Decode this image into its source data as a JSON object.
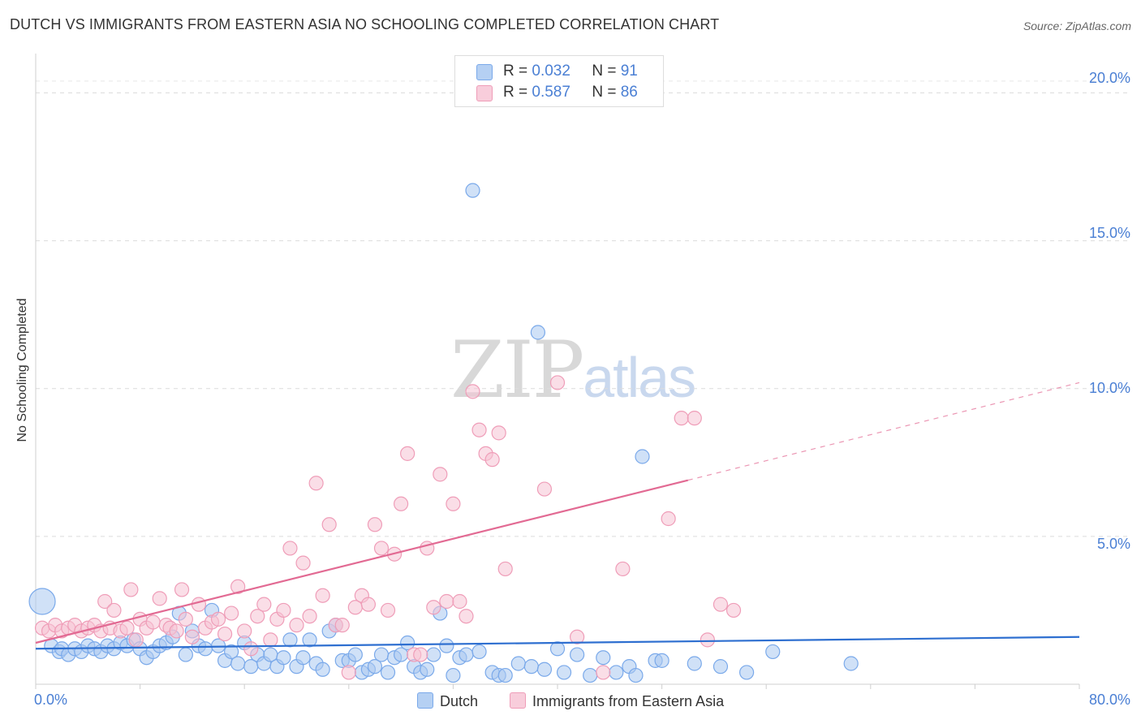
{
  "chart_data": {
    "type": "scatter",
    "title": "DUTCH VS IMMIGRANTS FROM EASTERN ASIA NO SCHOOLING COMPLETED CORRELATION CHART",
    "source": "Source: ZipAtlas.com",
    "xlabel": "",
    "ylabel": "No Schooling Completed",
    "xlim": [
      0,
      80
    ],
    "ylim": [
      0,
      21
    ],
    "x_tick_labels": [
      "0.0%",
      "80.0%"
    ],
    "y_ticks": [
      5,
      10,
      15,
      20
    ],
    "y_tick_labels": [
      "5.0%",
      "10.0%",
      "15.0%",
      "20.0%"
    ],
    "watermark": {
      "zip": "ZIP",
      "atlas": "atlas"
    },
    "legend_stats": [
      {
        "r_label": "R =",
        "r_value": "0.032",
        "n_label": "N =",
        "n_value": "91"
      },
      {
        "r_label": "R =",
        "r_value": "0.587",
        "n_label": "N =",
        "n_value": "86"
      }
    ],
    "series": [
      {
        "name": "Dutch",
        "color": "#7aa9ea",
        "fill": "#a9c8f0",
        "trend_color": "#2e6fd0",
        "trend": {
          "x0": 0,
          "y0": 1.2,
          "x1": 80,
          "y1": 1.6,
          "solid_to": 80
        },
        "points": [
          [
            0.5,
            2.8
          ],
          [
            1.2,
            1.3
          ],
          [
            1.8,
            1.1
          ],
          [
            2.0,
            1.2
          ],
          [
            2.5,
            1.0
          ],
          [
            3.0,
            1.2
          ],
          [
            3.5,
            1.1
          ],
          [
            4.0,
            1.3
          ],
          [
            4.5,
            1.2
          ],
          [
            5.0,
            1.1
          ],
          [
            5.5,
            1.3
          ],
          [
            6.0,
            1.2
          ],
          [
            6.5,
            1.4
          ],
          [
            7.0,
            1.3
          ],
          [
            7.5,
            1.5
          ],
          [
            8.0,
            1.2
          ],
          [
            8.5,
            0.9
          ],
          [
            9.0,
            1.1
          ],
          [
            9.5,
            1.3
          ],
          [
            10.0,
            1.4
          ],
          [
            10.5,
            1.6
          ],
          [
            11.0,
            2.4
          ],
          [
            11.5,
            1.0
          ],
          [
            12.0,
            1.8
          ],
          [
            12.5,
            1.3
          ],
          [
            13.0,
            1.2
          ],
          [
            13.5,
            2.5
          ],
          [
            14.0,
            1.3
          ],
          [
            14.5,
            0.8
          ],
          [
            15.0,
            1.1
          ],
          [
            15.5,
            0.7
          ],
          [
            16.0,
            1.4
          ],
          [
            16.5,
            0.6
          ],
          [
            17.0,
            1.0
          ],
          [
            17.5,
            0.7
          ],
          [
            18.0,
            1.0
          ],
          [
            18.5,
            0.6
          ],
          [
            19.0,
            0.9
          ],
          [
            19.5,
            1.5
          ],
          [
            20.0,
            0.6
          ],
          [
            20.5,
            0.9
          ],
          [
            21.0,
            1.5
          ],
          [
            21.5,
            0.7
          ],
          [
            22.0,
            0.5
          ],
          [
            22.5,
            1.8
          ],
          [
            23.0,
            2.0
          ],
          [
            23.5,
            0.8
          ],
          [
            24.0,
            0.8
          ],
          [
            24.5,
            1.0
          ],
          [
            25.0,
            0.4
          ],
          [
            25.5,
            0.5
          ],
          [
            26.0,
            0.6
          ],
          [
            26.5,
            1.0
          ],
          [
            27.0,
            0.4
          ],
          [
            27.5,
            0.9
          ],
          [
            28.0,
            1.0
          ],
          [
            28.5,
            1.4
          ],
          [
            29.0,
            0.6
          ],
          [
            29.5,
            0.4
          ],
          [
            30.0,
            0.5
          ],
          [
            30.5,
            1.0
          ],
          [
            31.0,
            2.4
          ],
          [
            31.5,
            1.3
          ],
          [
            32.0,
            0.3
          ],
          [
            32.5,
            0.9
          ],
          [
            33.0,
            1.0
          ],
          [
            33.5,
            16.7
          ],
          [
            34.0,
            1.1
          ],
          [
            35.0,
            0.4
          ],
          [
            35.5,
            0.3
          ],
          [
            36.0,
            0.3
          ],
          [
            37.0,
            0.7
          ],
          [
            38.0,
            0.6
          ],
          [
            38.5,
            11.9
          ],
          [
            39.0,
            0.5
          ],
          [
            40.0,
            1.2
          ],
          [
            40.5,
            0.4
          ],
          [
            41.5,
            1.0
          ],
          [
            42.5,
            0.3
          ],
          [
            43.5,
            0.9
          ],
          [
            44.5,
            0.4
          ],
          [
            45.5,
            0.6
          ],
          [
            46.0,
            0.3
          ],
          [
            46.5,
            7.7
          ],
          [
            47.5,
            0.8
          ],
          [
            48.0,
            0.8
          ],
          [
            50.5,
            0.7
          ],
          [
            52.5,
            0.6
          ],
          [
            54.5,
            0.4
          ],
          [
            56.5,
            1.1
          ],
          [
            62.5,
            0.7
          ]
        ]
      },
      {
        "name": "Immigrants from Eastern Asia",
        "color": "#ef9db8",
        "fill": "#f6c3d3",
        "trend_color": "#e26a93",
        "trend": {
          "x0": 0,
          "y0": 1.4,
          "x1": 80,
          "y1": 10.2,
          "solid_to": 50
        },
        "points": [
          [
            0.5,
            1.9
          ],
          [
            1.0,
            1.8
          ],
          [
            1.5,
            2.0
          ],
          [
            2.0,
            1.8
          ],
          [
            2.5,
            1.9
          ],
          [
            3.0,
            2.0
          ],
          [
            3.5,
            1.8
          ],
          [
            4.0,
            1.9
          ],
          [
            4.5,
            2.0
          ],
          [
            5.0,
            1.8
          ],
          [
            5.3,
            2.8
          ],
          [
            5.7,
            1.9
          ],
          [
            6.0,
            2.5
          ],
          [
            6.5,
            1.8
          ],
          [
            7.0,
            1.9
          ],
          [
            7.3,
            3.2
          ],
          [
            7.7,
            1.5
          ],
          [
            8.0,
            2.2
          ],
          [
            8.5,
            1.9
          ],
          [
            9.0,
            2.1
          ],
          [
            9.5,
            2.9
          ],
          [
            10.0,
            2.0
          ],
          [
            10.3,
            1.9
          ],
          [
            10.8,
            1.8
          ],
          [
            11.2,
            3.2
          ],
          [
            11.5,
            2.2
          ],
          [
            12.0,
            1.6
          ],
          [
            12.5,
            2.7
          ],
          [
            13.0,
            1.9
          ],
          [
            13.5,
            2.1
          ],
          [
            14.0,
            2.2
          ],
          [
            14.5,
            1.7
          ],
          [
            15.0,
            2.4
          ],
          [
            15.5,
            3.3
          ],
          [
            16.0,
            1.8
          ],
          [
            16.5,
            1.2
          ],
          [
            17.0,
            2.3
          ],
          [
            17.5,
            2.7
          ],
          [
            18.0,
            1.5
          ],
          [
            18.5,
            2.2
          ],
          [
            19.0,
            2.5
          ],
          [
            19.5,
            4.6
          ],
          [
            20.0,
            2.0
          ],
          [
            20.5,
            4.1
          ],
          [
            21.0,
            2.3
          ],
          [
            21.5,
            6.8
          ],
          [
            22.0,
            3.0
          ],
          [
            22.5,
            5.4
          ],
          [
            23.0,
            2.0
          ],
          [
            23.5,
            2.0
          ],
          [
            24.0,
            0.4
          ],
          [
            24.5,
            2.6
          ],
          [
            25.0,
            3.0
          ],
          [
            25.5,
            2.7
          ],
          [
            26.0,
            5.4
          ],
          [
            26.5,
            4.6
          ],
          [
            27.0,
            2.5
          ],
          [
            27.5,
            4.4
          ],
          [
            28.0,
            6.1
          ],
          [
            28.5,
            7.8
          ],
          [
            29.0,
            1.0
          ],
          [
            29.5,
            1.0
          ],
          [
            30.0,
            4.6
          ],
          [
            30.5,
            2.6
          ],
          [
            31.0,
            7.1
          ],
          [
            31.5,
            2.8
          ],
          [
            32.0,
            6.1
          ],
          [
            32.5,
            2.8
          ],
          [
            33.0,
            2.3
          ],
          [
            33.5,
            9.9
          ],
          [
            34.0,
            8.6
          ],
          [
            34.5,
            7.8
          ],
          [
            35.0,
            7.6
          ],
          [
            35.5,
            8.5
          ],
          [
            36.0,
            3.9
          ],
          [
            39.0,
            6.6
          ],
          [
            40.0,
            10.2
          ],
          [
            41.5,
            1.6
          ],
          [
            43.5,
            0.4
          ],
          [
            45.0,
            3.9
          ],
          [
            48.5,
            5.6
          ],
          [
            49.5,
            9.0
          ],
          [
            50.5,
            9.0
          ],
          [
            51.5,
            1.5
          ],
          [
            52.5,
            2.7
          ],
          [
            53.5,
            2.5
          ]
        ]
      }
    ]
  }
}
